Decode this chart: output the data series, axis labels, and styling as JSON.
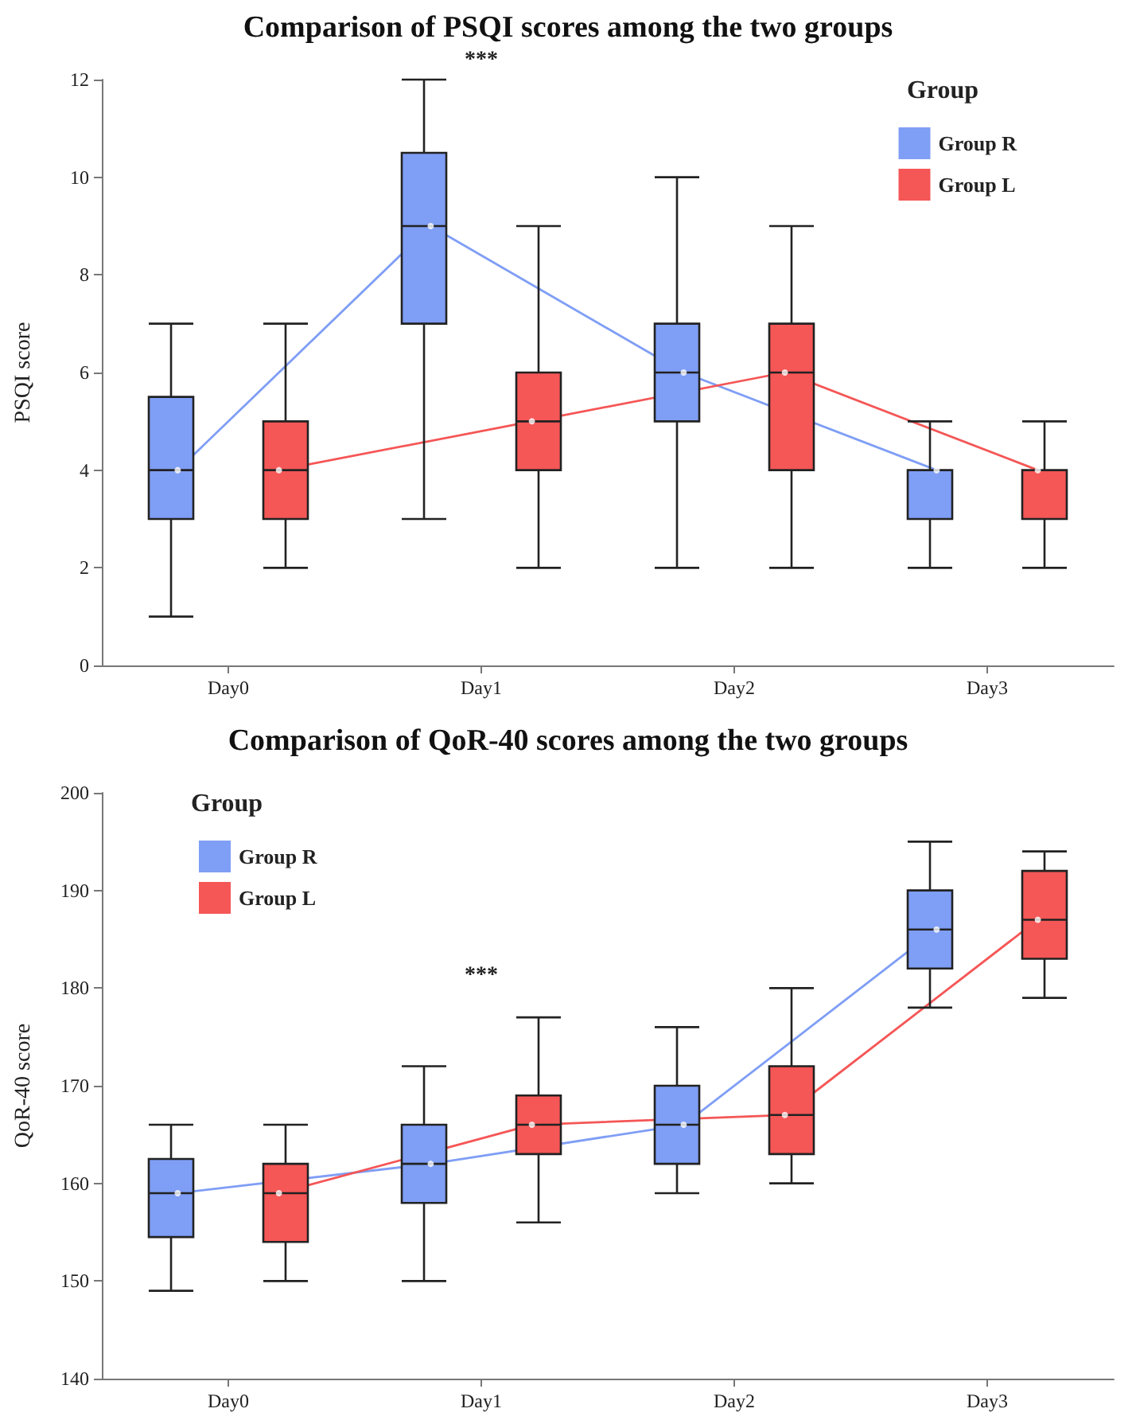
{
  "chart_data": [
    {
      "type": "box",
      "title": "Comparison of PSQI scores among the two groups",
      "ylabel": "PSQI score",
      "legend_title": "Group",
      "legend": "top right",
      "grid": false,
      "categories": [
        "Day0",
        "Day1",
        "Day2",
        "Day3"
      ],
      "ylim": [
        0,
        12
      ],
      "yticks": [
        0,
        2,
        4,
        6,
        8,
        10,
        12
      ],
      "annotations": [
        "***"
      ],
      "series": [
        {
          "name": "Group R",
          "color": "#7f9ef5",
          "boxes": [
            {
              "low": 1,
              "q1": 3,
              "median": 4,
              "q3": 5.5,
              "high": 7,
              "mean": 4
            },
            {
              "low": 3,
              "q1": 7,
              "median": 9,
              "q3": 10.5,
              "high": 12,
              "mean": 9
            },
            {
              "low": 2,
              "q1": 5,
              "median": 6,
              "q3": 7,
              "high": 10,
              "mean": 6
            },
            {
              "low": 2,
              "q1": 3,
              "median": 4,
              "q3": 4,
              "high": 5,
              "mean": 4
            }
          ]
        },
        {
          "name": "Group L",
          "color": "#f55656",
          "boxes": [
            {
              "low": 2,
              "q1": 3,
              "median": 4,
              "q3": 5,
              "high": 7,
              "mean": 4
            },
            {
              "low": 2,
              "q1": 4,
              "median": 5,
              "q3": 6,
              "high": 9,
              "mean": 5
            },
            {
              "low": 2,
              "q1": 4,
              "median": 6,
              "q3": 7,
              "high": 9,
              "mean": 6
            },
            {
              "low": 2,
              "q1": 3,
              "median": 4,
              "q3": 4,
              "high": 5,
              "mean": 4
            }
          ]
        },
        {
          "type": "line",
          "color": "#7f9ef5",
          "line_style": "solid",
          "marker": "none",
          "values": [
            4,
            9,
            6,
            4
          ]
        },
        {
          "type": "line",
          "color": "#f55656",
          "line_style": "solid",
          "marker": "none",
          "values": [
            4,
            5,
            6,
            4
          ]
        }
      ]
    },
    {
      "type": "box",
      "title": "Comparison of QoR-40 scores among the two groups",
      "ylabel": "QoR-40 score",
      "legend_title": "Group",
      "legend": "top left",
      "grid": false,
      "categories": [
        "Day0",
        "Day1",
        "Day2",
        "Day3"
      ],
      "ylim": [
        140,
        200
      ],
      "yticks": [
        140,
        150,
        160,
        170,
        180,
        190,
        200
      ],
      "annotations": [
        "***"
      ],
      "series": [
        {
          "name": "Group R",
          "color": "#7f9ef5",
          "boxes": [
            {
              "low": 149,
              "q1": 154.5,
              "median": 159,
              "q3": 162.5,
              "high": 166,
              "mean": 159
            },
            {
              "low": 150,
              "q1": 158,
              "median": 162,
              "q3": 166,
              "high": 172,
              "mean": 162
            },
            {
              "low": 159,
              "q1": 162,
              "median": 166,
              "q3": 170,
              "high": 176,
              "mean": 166
            },
            {
              "low": 178,
              "q1": 182,
              "median": 186,
              "q3": 190,
              "high": 195,
              "mean": 186
            }
          ]
        },
        {
          "name": "Group L",
          "color": "#f55656",
          "boxes": [
            {
              "low": 150,
              "q1": 154,
              "median": 159,
              "q3": 162,
              "high": 166,
              "mean": 159
            },
            {
              "low": 156,
              "q1": 163,
              "median": 166,
              "q3": 169,
              "high": 177,
              "mean": 166
            },
            {
              "low": 160,
              "q1": 163,
              "median": 167,
              "q3": 172,
              "high": 180,
              "mean": 167
            },
            {
              "low": 179,
              "q1": 183,
              "median": 187,
              "q3": 192,
              "high": 194,
              "mean": 187
            }
          ]
        },
        {
          "type": "line",
          "color": "#7f9ef5",
          "line_style": "solid",
          "marker": "none",
          "values": [
            159,
            162,
            166,
            186
          ]
        },
        {
          "type": "line",
          "color": "#f55656",
          "line_style": "solid",
          "marker": "none",
          "values": [
            159,
            166,
            167,
            187
          ]
        }
      ]
    }
  ]
}
